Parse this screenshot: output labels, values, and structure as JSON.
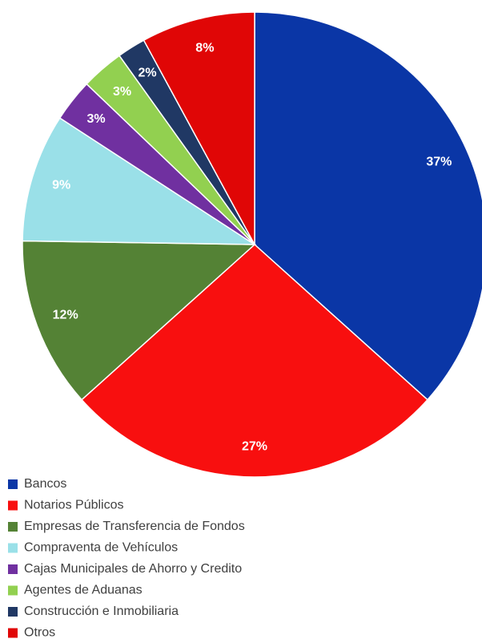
{
  "chart_data": {
    "type": "pie",
    "categories": [
      "Bancos",
      "Notarios Públicos",
      "Empresas de Transferencia de Fondos",
      "Compraventa de Vehículos",
      "Cajas Municipales de Ahorro y Credito",
      "Agentes de Aduanas",
      "Construcción e Inmobiliaria",
      "Otros"
    ],
    "values": [
      37,
      27,
      12,
      9,
      3,
      3,
      2,
      8
    ],
    "value_labels": [
      "37%",
      "27%",
      "12%",
      "9%",
      "3%",
      "3%",
      "2%",
      "8%"
    ],
    "colors": [
      "#0a36a6",
      "#f80f0f",
      "#548235",
      "#9ae0e8",
      "#7030a0",
      "#92d050",
      "#203864",
      "#e00606"
    ],
    "legend": "bottom"
  }
}
